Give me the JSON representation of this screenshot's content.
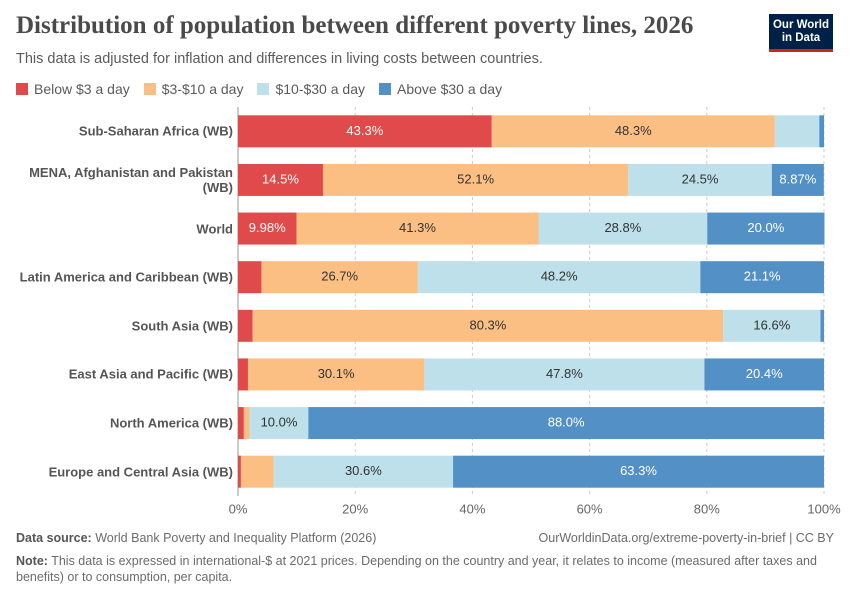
{
  "chart_data": {
    "type": "stacked-bar-horizontal",
    "title": "Distribution of population between different poverty lines, 2026",
    "subtitle": "This data is adjusted for inflation and differences in living costs between countries.",
    "logo": [
      "Our World",
      "in Data"
    ],
    "categories": [
      "Sub-Saharan Africa (WB)",
      "MENA, Afghanistan and Pakistan (WB)",
      "World",
      "Latin America and Caribbean (WB)",
      "South Asia (WB)",
      "East Asia and Pacific (WB)",
      "North America (WB)",
      "Europe and Central Asia (WB)"
    ],
    "series": [
      {
        "name": "Below $3 a day",
        "color": "#e04a4a",
        "values": [
          43.3,
          14.5,
          9.98,
          4.0,
          2.5,
          1.7,
          1.0,
          0.5
        ],
        "value_labels": [
          "43.3%",
          "14.5%",
          "9.98%",
          null,
          null,
          null,
          null,
          null
        ]
      },
      {
        "name": "$3-$10 a day",
        "color": "#fbbf84",
        "values": [
          48.3,
          52.1,
          41.3,
          26.7,
          80.3,
          30.1,
          1.0,
          5.6
        ],
        "value_labels": [
          "48.3%",
          "52.1%",
          "41.3%",
          "26.7%",
          "80.3%",
          "30.1%",
          null,
          null
        ]
      },
      {
        "name": "$10-$30 a day",
        "color": "#bde0ea",
        "values": [
          7.6,
          24.5,
          28.8,
          48.2,
          16.6,
          47.8,
          10.0,
          30.6
        ],
        "value_labels": [
          null,
          "24.5%",
          "28.8%",
          "48.2%",
          "16.6%",
          "47.8%",
          "10.0%",
          "30.6%"
        ]
      },
      {
        "name": "Above $30 a day",
        "color": "#5390c6",
        "values": [
          0.8,
          8.87,
          20.0,
          21.1,
          0.6,
          20.4,
          88.0,
          63.3
        ],
        "value_labels": [
          null,
          "8.87%",
          "20.0%",
          "21.1%",
          null,
          "20.4%",
          "88.0%",
          "63.3%"
        ]
      }
    ],
    "xlim": [
      0,
      100
    ],
    "xticks": [
      {
        "value": 0,
        "label": "0%"
      },
      {
        "value": 20,
        "label": "20%"
      },
      {
        "value": 40,
        "label": "40%"
      },
      {
        "value": 60,
        "label": "60%"
      },
      {
        "value": 80,
        "label": "80%"
      },
      {
        "value": 100,
        "label": "100%"
      }
    ],
    "grid": true,
    "source_label": "Data source:",
    "source": "World Bank Poverty and Inequality Platform (2026)",
    "url": "OurWorldinData.org/extreme-poverty-in-brief | CC BY",
    "note_label": "Note:",
    "note": "This data is expressed in international-$ at 2021 prices. Depending on the country and year, it relates to income (measured after taxes and benefits) or to consumption, per capita."
  }
}
